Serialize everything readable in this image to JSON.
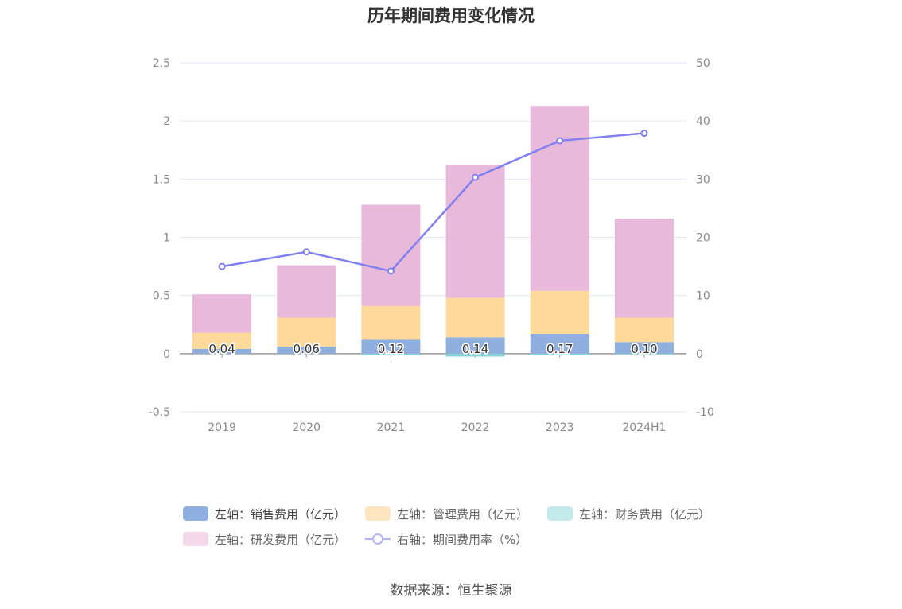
{
  "chart_data": {
    "type": "bar",
    "title": "历年期间费用变化情况",
    "categories": [
      "2019",
      "2020",
      "2021",
      "2022",
      "2023",
      "2024H1"
    ],
    "stacked": true,
    "y_left": {
      "ylim": [
        -0.5,
        2.5
      ],
      "ticks": [
        "-0.5",
        "0",
        "0.5",
        "1",
        "1.5",
        "2",
        "2.5"
      ]
    },
    "y_right": {
      "ylim": [
        -10,
        50
      ],
      "ticks": [
        "-10",
        "0",
        "10",
        "20",
        "30",
        "40",
        "50"
      ]
    },
    "grid": true,
    "series": [
      {
        "name": "左轴：销售费用（亿元）",
        "axis": "left",
        "type": "bar",
        "color": "#8fb0df",
        "values": [
          0.04,
          0.06,
          0.12,
          0.14,
          0.17,
          0.1
        ],
        "labels": [
          "0.04",
          "0.06",
          "0.12",
          "0.14",
          "0.17",
          "0.10"
        ]
      },
      {
        "name": "左轴：管理费用（亿元）",
        "axis": "left",
        "type": "bar",
        "color": "#ffd89c",
        "values": [
          0.14,
          0.25,
          0.29,
          0.34,
          0.37,
          0.21
        ]
      },
      {
        "name": "左轴：财务费用（亿元）",
        "axis": "left",
        "type": "bar",
        "color": "#89d4d8",
        "values": [
          0.0,
          0.0,
          -0.015,
          -0.025,
          -0.015,
          -0.005
        ]
      },
      {
        "name": "左轴：研发费用（亿元）",
        "axis": "left",
        "type": "bar",
        "color": "#e8b9da",
        "values": [
          0.33,
          0.45,
          0.87,
          1.14,
          1.59,
          0.85
        ]
      },
      {
        "name": "右轴：期间费用率（%）",
        "axis": "right",
        "type": "line",
        "color": "#8080f0",
        "values": [
          15.0,
          17.5,
          14.2,
          30.3,
          36.6,
          37.9
        ]
      }
    ],
    "legend": "bottom"
  },
  "legend_items": [
    {
      "label": "左轴：销售费用（亿元）",
      "color": "#8fb0df",
      "kind": "bar"
    },
    {
      "label": "左轴：管理费用（亿元）",
      "color": "#ffe6c0",
      "kind": "bar"
    },
    {
      "label": "左轴：财务费用（亿元）",
      "color": "#c5eaec",
      "kind": "bar"
    },
    {
      "label": "左轴：研发费用（亿元）",
      "color": "#f4d8ea",
      "kind": "bar"
    },
    {
      "label": "右轴：期间费用率（%）",
      "color": "#b3b7f5",
      "kind": "line"
    }
  ],
  "source": "数据来源：恒生聚源"
}
